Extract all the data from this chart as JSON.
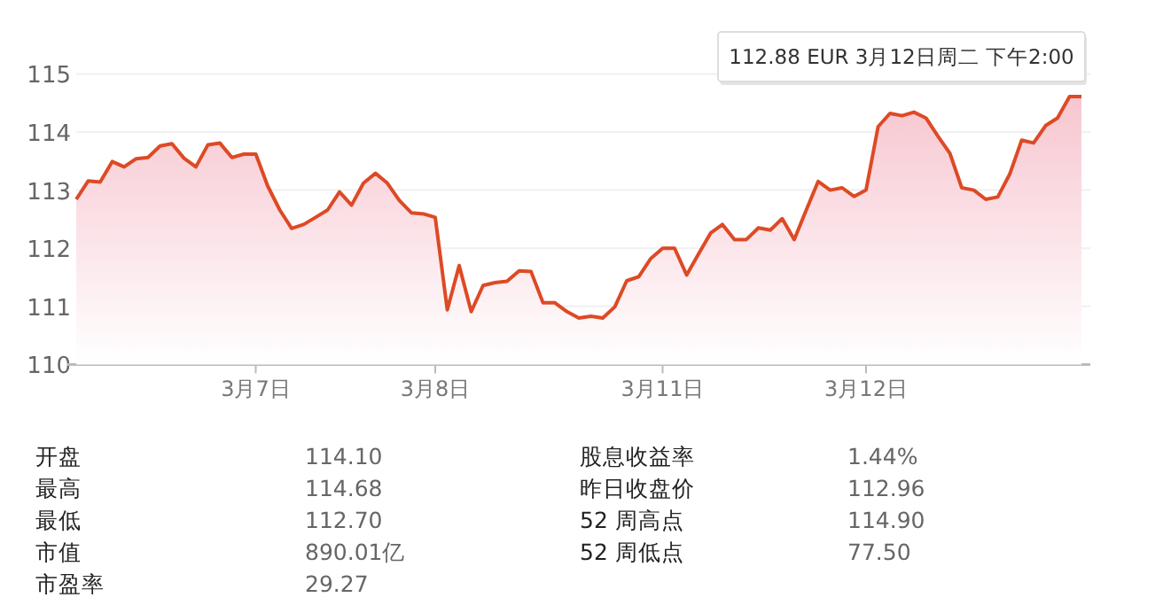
{
  "chart_data": [
    {
      "type": "area",
      "color": "#dd4a25",
      "categories": [
        null,
        null,
        null,
        null,
        null,
        null,
        null,
        null,
        null,
        null,
        null,
        null,
        null,
        null,
        null,
        "3月7日",
        null,
        null,
        null,
        null,
        null,
        null,
        null,
        null,
        null,
        null,
        null,
        null,
        null,
        null,
        "3月8日",
        null,
        null,
        null,
        null,
        null,
        null,
        null,
        null,
        null,
        null,
        null,
        null,
        null,
        null,
        null,
        null,
        null,
        null,
        "3月11日",
        null,
        null,
        null,
        null,
        null,
        null,
        null,
        null,
        null,
        null,
        null,
        null,
        null,
        null,
        null,
        null,
        "3月12日",
        null,
        null,
        null,
        null,
        null,
        null,
        null,
        null,
        null,
        null,
        null,
        null,
        null,
        null,
        null,
        null,
        null,
        null
      ],
      "values": [
        112.84,
        113.16,
        113.14,
        113.49,
        113.4,
        113.54,
        113.56,
        113.76,
        113.8,
        113.55,
        113.4,
        113.78,
        113.81,
        113.56,
        113.62,
        113.62,
        113.07,
        112.66,
        112.34,
        112.41,
        112.53,
        112.66,
        112.97,
        112.74,
        113.12,
        113.29,
        113.12,
        112.82,
        112.61,
        112.59,
        112.53,
        110.94,
        111.7,
        110.91,
        111.36,
        111.41,
        111.43,
        111.61,
        111.6,
        111.06,
        111.06,
        110.91,
        110.8,
        110.83,
        110.8,
        110.99,
        111.44,
        111.51,
        111.82,
        112.0,
        112.0,
        111.54,
        111.9,
        112.26,
        112.41,
        112.15,
        112.15,
        112.35,
        112.31,
        112.51,
        112.15,
        112.66,
        113.15,
        113.0,
        113.04,
        112.89,
        113.0,
        114.09,
        114.32,
        114.28,
        114.34,
        114.24,
        113.93,
        113.63,
        113.04,
        113.0,
        112.84,
        112.88,
        113.27,
        113.86,
        113.81,
        114.11,
        114.24,
        114.61,
        114.61
      ],
      "ylim": [
        110,
        115
      ],
      "yticks": [
        110,
        111,
        112,
        113,
        114,
        115
      ],
      "grid": "y",
      "marker": "none",
      "line_style": "solid",
      "annotations": [
        "112.88 EUR  3月12日周二 下午2:00"
      ]
    },
    {
      "type": "other",
      "annotations": [
        "开盘",
        "114.10",
        "股息收益率",
        "1.44%",
        "最高",
        "114.68",
        "昨日收盘价",
        "112.96",
        "最低",
        "112.70",
        "52 周高点",
        "114.90",
        "市值",
        "890.01亿",
        "52 周低点",
        "77.50",
        "市盈率",
        "29.27"
      ]
    }
  ]
}
